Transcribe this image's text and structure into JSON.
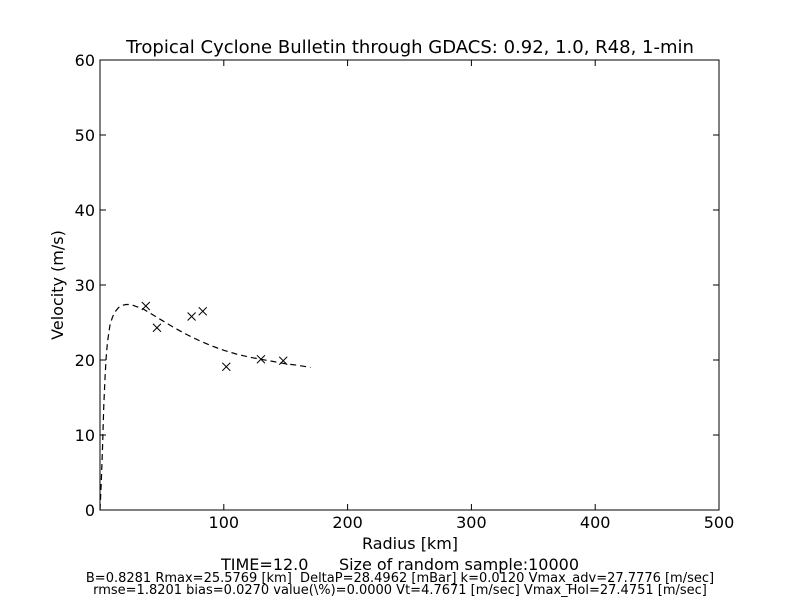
{
  "chart_data": {
    "type": "scatter",
    "title": "Tropical Cyclone Bulletin through GDACS: 0.92, 1.0, R48, 1-min",
    "xlabel": "Radius [km]",
    "ylabel": "Velocity (m/s)",
    "xlim": [
      0,
      500
    ],
    "ylim": [
      0,
      60
    ],
    "x_ticks": [
      100,
      200,
      300,
      400,
      500
    ],
    "x_tick_labels": [
      "100",
      "200",
      "300",
      "400",
      "500"
    ],
    "y_ticks": [
      0,
      10,
      20,
      30,
      40,
      50,
      60
    ],
    "y_tick_labels": [
      "0",
      "10",
      "20",
      "30",
      "40",
      "50",
      "60"
    ],
    "grid": false,
    "series": [
      {
        "style": "dashed-line",
        "color": "#000000",
        "x": [
          0,
          1,
          2,
          3,
          4,
          5,
          6,
          8,
          10,
          12,
          15,
          18,
          21,
          25,
          30,
          35,
          40,
          50,
          60,
          70,
          80,
          90,
          100,
          110,
          120,
          130,
          140,
          150,
          160,
          170
        ],
        "y": [
          0,
          3.5,
          8.2,
          13.6,
          17.6,
          20.4,
          22.3,
          24.6,
          25.7,
          26.4,
          27.0,
          27.3,
          27.4,
          27.4,
          27.1,
          26.8,
          26.3,
          25.3,
          24.3,
          23.4,
          22.6,
          21.9,
          21.3,
          20.8,
          20.4,
          20.1,
          19.8,
          19.5,
          19.3,
          19.0
        ]
      },
      {
        "style": "x-markers",
        "color": "#000000",
        "x": [
          37,
          46,
          74,
          83,
          102,
          130,
          148
        ],
        "y": [
          27.2,
          24.3,
          25.8,
          26.5,
          19.1,
          20.1,
          19.9
        ]
      }
    ],
    "footer": {
      "line1": "TIME=12.0      Size of random sample:10000",
      "line2": "B=0.8281 Rmax=25.5769 [km]  DeltaP=28.4962 [mBar] k=0.0120 Vmax_adv=27.7776 [m/sec]",
      "line3": "rmse=1.8201 bias=0.0270 value(\\%)=0.0000 Vt=4.7671 [m/sec] Vmax_Hol=27.4751 [m/sec]"
    }
  }
}
